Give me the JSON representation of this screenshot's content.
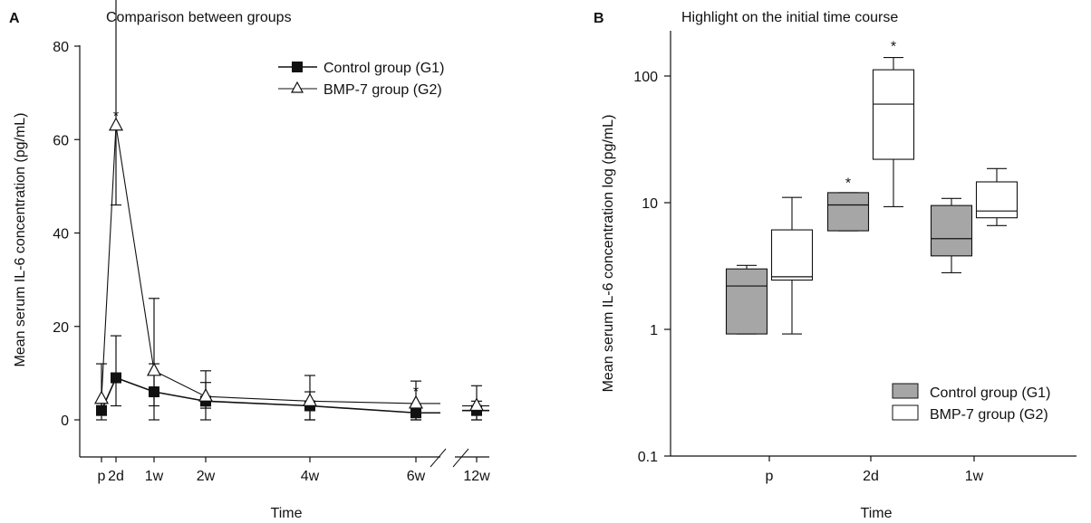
{
  "panels": [
    {
      "letter": "A",
      "title": "Comparison between groups",
      "xlabel": "Time",
      "ylabel": "Mean serum IL-6 concentration (pg/mL)"
    },
    {
      "letter": "B",
      "title": "Highlight on the initial time course",
      "xlabel": "Time",
      "ylabel": "Mean serum IL-6 concentration log (pg/mL)"
    }
  ],
  "colors": {
    "control": "#111111",
    "bmp7_fill": "#ffffff",
    "box_gray": "#a6a6a6",
    "axis": "#111111"
  },
  "chart_data": [
    {
      "type": "line",
      "title": "Comparison between groups",
      "xlabel": "Time",
      "ylabel": "Mean serum IL-6 concentration (pg/mL)",
      "categories": [
        "p",
        "2d",
        "1w",
        "2w",
        "4w",
        "6w",
        "12w"
      ],
      "x_positions_weeks": [
        0,
        0.29,
        1,
        2,
        4,
        6,
        12
      ],
      "axis_break_between": [
        "6w",
        "12w"
      ],
      "ylim": [
        -5,
        80
      ],
      "yticks": [
        0,
        20,
        40,
        60,
        80
      ],
      "legend_position": "top-right",
      "series": [
        {
          "name": "Control group (G1)",
          "marker": "filled-square",
          "values": [
            2,
            9,
            6,
            4,
            3,
            1.5,
            2
          ],
          "err_up": [
            2,
            9,
            6,
            4,
            3,
            1.5,
            2
          ],
          "err_low": [
            0,
            6,
            3,
            1.5,
            3,
            1.5,
            2
          ]
        },
        {
          "name": "BMP-7 group (G2)",
          "marker": "open-triangle",
          "values": [
            4.5,
            63,
            10.5,
            5,
            4,
            3.5,
            3
          ],
          "err_up": [
            7.5,
            63,
            15.5,
            5.5,
            5.5,
            4.8,
            4.3
          ],
          "err_low": [
            4.5,
            17,
            10.5,
            5,
            4,
            3.5,
            3
          ]
        }
      ],
      "annotations": [
        {
          "text": "*",
          "at": "2d",
          "value": 65
        },
        {
          "text": "*",
          "at": "6w",
          "value": 6
        }
      ]
    },
    {
      "type": "box",
      "title": "Highlight on the initial time course",
      "xlabel": "Time",
      "ylabel": "Mean serum IL-6 concentration log (pg/mL)",
      "yscale": "log",
      "ylim": [
        0.1,
        200
      ],
      "yticks": [
        0.1,
        1,
        10,
        100
      ],
      "ytick_labels": [
        "0.1",
        "1",
        "10",
        "100"
      ],
      "categories": [
        "p",
        "2d",
        "1w"
      ],
      "legend_position": "bottom-right",
      "series": [
        {
          "name": "Control group (G1)",
          "fill": "#a6a6a6",
          "boxes": [
            {
              "min": 0.92,
              "q1": 0.92,
              "median": 2.2,
              "q3": 3.0,
              "max": 3.2
            },
            {
              "min": 6.0,
              "q1": 6.0,
              "median": 9.6,
              "q3": 12.0,
              "max": 12.0
            },
            {
              "min": 2.8,
              "q1": 3.8,
              "median": 5.2,
              "q3": 9.5,
              "max": 10.8
            }
          ]
        },
        {
          "name": "BMP-7 group (G2)",
          "fill": "#ffffff",
          "boxes": [
            {
              "min": 0.92,
              "q1": 2.45,
              "median": 2.6,
              "q3": 6.1,
              "max": 11.0
            },
            {
              "min": 9.3,
              "q1": 22,
              "median": 60,
              "q3": 112,
              "max": 140
            },
            {
              "min": 6.6,
              "q1": 7.6,
              "median": 8.6,
              "q3": 14.6,
              "max": 18.6
            }
          ]
        }
      ],
      "annotations": [
        {
          "text": "*",
          "at": "2d",
          "series": "Control group (G1)",
          "value": 15
        },
        {
          "text": "*",
          "at": "2d",
          "series": "BMP-7 group (G2)",
          "value": 180
        }
      ]
    }
  ]
}
